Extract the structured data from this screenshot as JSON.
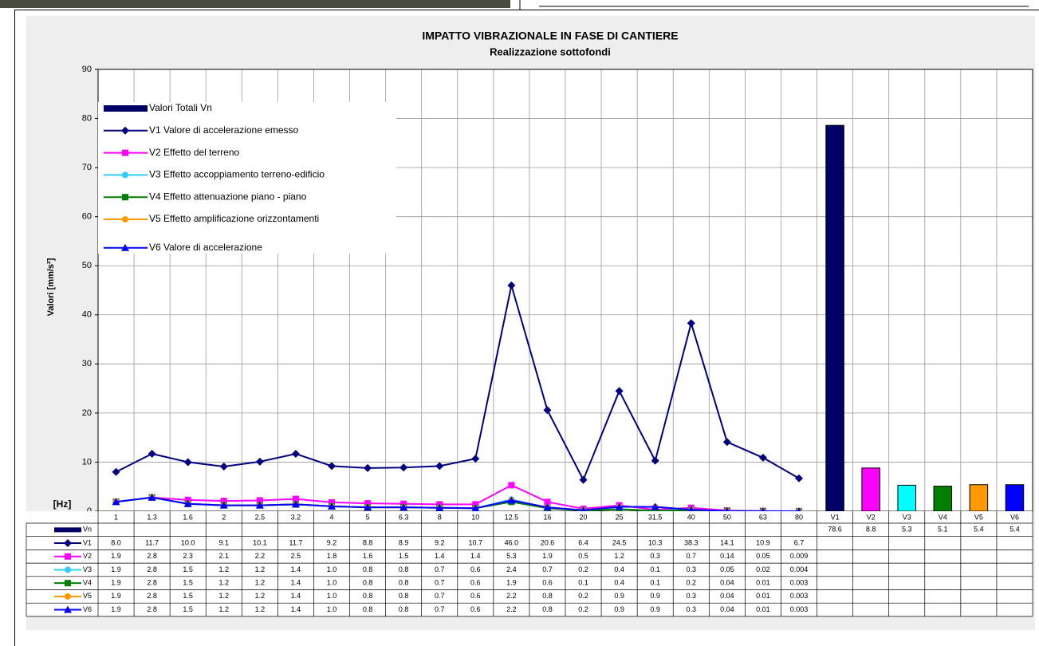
{
  "chart_data": {
    "type": "line",
    "title": "IMPATTO VIBRAZIONALE IN FASE DI CANTIERE",
    "subtitle": "Realizzazione sottofondi",
    "ylabel": "Valori [mm/s²]",
    "xlabel": "[Hz]",
    "categories": [
      "1",
      "1.3",
      "1.6",
      "2",
      "2.5",
      "3.2",
      "4",
      "5",
      "6.3",
      "8",
      "10",
      "12.5",
      "16",
      "20",
      "25",
      "31.5",
      "40",
      "50",
      "63",
      "80"
    ],
    "ylim": [
      0,
      90
    ],
    "yticks": [
      0,
      10,
      20,
      30,
      40,
      50,
      60,
      70,
      80,
      90
    ],
    "grid": true,
    "legend": "upper left",
    "series": [
      {
        "name": "V1 Valore di accelerazione emesso",
        "code": "V1",
        "color": "#000080",
        "marker": "diamond",
        "values": [
          8.0,
          11.7,
          10.0,
          9.1,
          10.1,
          11.7,
          9.2,
          8.8,
          8.9,
          9.2,
          10.7,
          46.0,
          20.6,
          6.4,
          24.5,
          10.3,
          38.3,
          14.1,
          10.9,
          6.7
        ],
        "value_labels": [
          "8.0",
          "11.7",
          "10.0",
          "9.1",
          "10.1",
          "11.7",
          "9.2",
          "8.8",
          "8.9",
          "9.2",
          "10.7",
          "46.0",
          "20.6",
          "6.4",
          "24.5",
          "10.3",
          "38.3",
          "14.1",
          "10.9",
          "6.7"
        ]
      },
      {
        "name": "V2 Effetto del terreno",
        "code": "V2",
        "color": "#ff00ff",
        "marker": "square",
        "values": [
          1.9,
          2.8,
          2.3,
          2.1,
          2.2,
          2.5,
          1.8,
          1.6,
          1.5,
          1.4,
          1.4,
          5.3,
          1.9,
          0.5,
          1.2,
          0.3,
          0.7,
          0.14,
          0.05,
          0.009
        ],
        "value_labels": [
          "1.9",
          "2.8",
          "2.3",
          "2.1",
          "2.2",
          "2.5",
          "1.8",
          "1.6",
          "1.5",
          "1.4",
          "1.4",
          "5.3",
          "1.9",
          "0.5",
          "1.2",
          "0.3",
          "0.7",
          "0.14",
          "0.05",
          "0.009"
        ]
      },
      {
        "name": "V3 Effetto accoppiamento terreno-edificio",
        "code": "V3",
        "color": "#33ccff",
        "marker": "circle",
        "values": [
          1.9,
          2.8,
          1.5,
          1.2,
          1.2,
          1.4,
          1.0,
          0.8,
          0.8,
          0.7,
          0.6,
          2.4,
          0.7,
          0.2,
          0.4,
          0.1,
          0.3,
          0.05,
          0.02,
          0.004
        ],
        "value_labels": [
          "1.9",
          "2.8",
          "1.5",
          "1.2",
          "1.2",
          "1.4",
          "1.0",
          "0.8",
          "0.8",
          "0.7",
          "0.6",
          "2.4",
          "0.7",
          "0.2",
          "0.4",
          "0.1",
          "0.3",
          "0.05",
          "0.02",
          "0.004"
        ]
      },
      {
        "name": "V4 Effetto attenuazione piano - piano",
        "code": "V4",
        "color": "#008000",
        "marker": "square",
        "values": [
          1.9,
          2.8,
          1.5,
          1.2,
          1.2,
          1.4,
          1.0,
          0.8,
          0.8,
          0.7,
          0.6,
          1.9,
          0.6,
          0.1,
          0.4,
          0.1,
          0.2,
          0.04,
          0.01,
          0.003
        ],
        "value_labels": [
          "1.9",
          "2.8",
          "1.5",
          "1.2",
          "1.2",
          "1.4",
          "1.0",
          "0.8",
          "0.8",
          "0.7",
          "0.6",
          "1.9",
          "0.6",
          "0.1",
          "0.4",
          "0.1",
          "0.2",
          "0.04",
          "0.01",
          "0.003"
        ]
      },
      {
        "name": "V5 Effetto amplificazione orizzontamenti",
        "code": "V5",
        "color": "#ff9900",
        "marker": "circle",
        "values": [
          1.9,
          2.8,
          1.5,
          1.2,
          1.2,
          1.4,
          1.0,
          0.8,
          0.8,
          0.7,
          0.6,
          2.2,
          0.8,
          0.2,
          0.9,
          0.9,
          0.3,
          0.04,
          0.01,
          0.003
        ],
        "value_labels": [
          "1.9",
          "2.8",
          "1.5",
          "1.2",
          "1.2",
          "1.4",
          "1.0",
          "0.8",
          "0.8",
          "0.7",
          "0.6",
          "2.2",
          "0.8",
          "0.2",
          "0.9",
          "0.9",
          "0.3",
          "0.04",
          "0.01",
          "0.003"
        ]
      },
      {
        "name": "V6 Valore di accelerazione",
        "code": "V6",
        "color": "#0000ff",
        "marker": "triangle",
        "values": [
          1.9,
          2.8,
          1.5,
          1.2,
          1.2,
          1.4,
          1.0,
          0.8,
          0.8,
          0.7,
          0.6,
          2.2,
          0.8,
          0.2,
          0.9,
          0.9,
          0.3,
          0.04,
          0.01,
          0.003
        ],
        "value_labels": [
          "1.9",
          "2.8",
          "1.5",
          "1.2",
          "1.2",
          "1.4",
          "1.0",
          "0.8",
          "0.8",
          "0.7",
          "0.6",
          "2.2",
          "0.8",
          "0.2",
          "0.9",
          "0.9",
          "0.3",
          "0.04",
          "0.01",
          "0.003"
        ]
      }
    ],
    "totals": {
      "type": "bar",
      "name": "Valori Totali Vn",
      "code": "Vn",
      "color": "#000066",
      "categories": [
        "V1",
        "V2",
        "V3",
        "V4",
        "V5",
        "V6"
      ],
      "colors": [
        "#000066",
        "#ff00ff",
        "#00ffff",
        "#008000",
        "#ff9900",
        "#0000ff"
      ],
      "values": [
        78.6,
        8.8,
        5.3,
        5.1,
        5.4,
        5.4
      ]
    }
  }
}
